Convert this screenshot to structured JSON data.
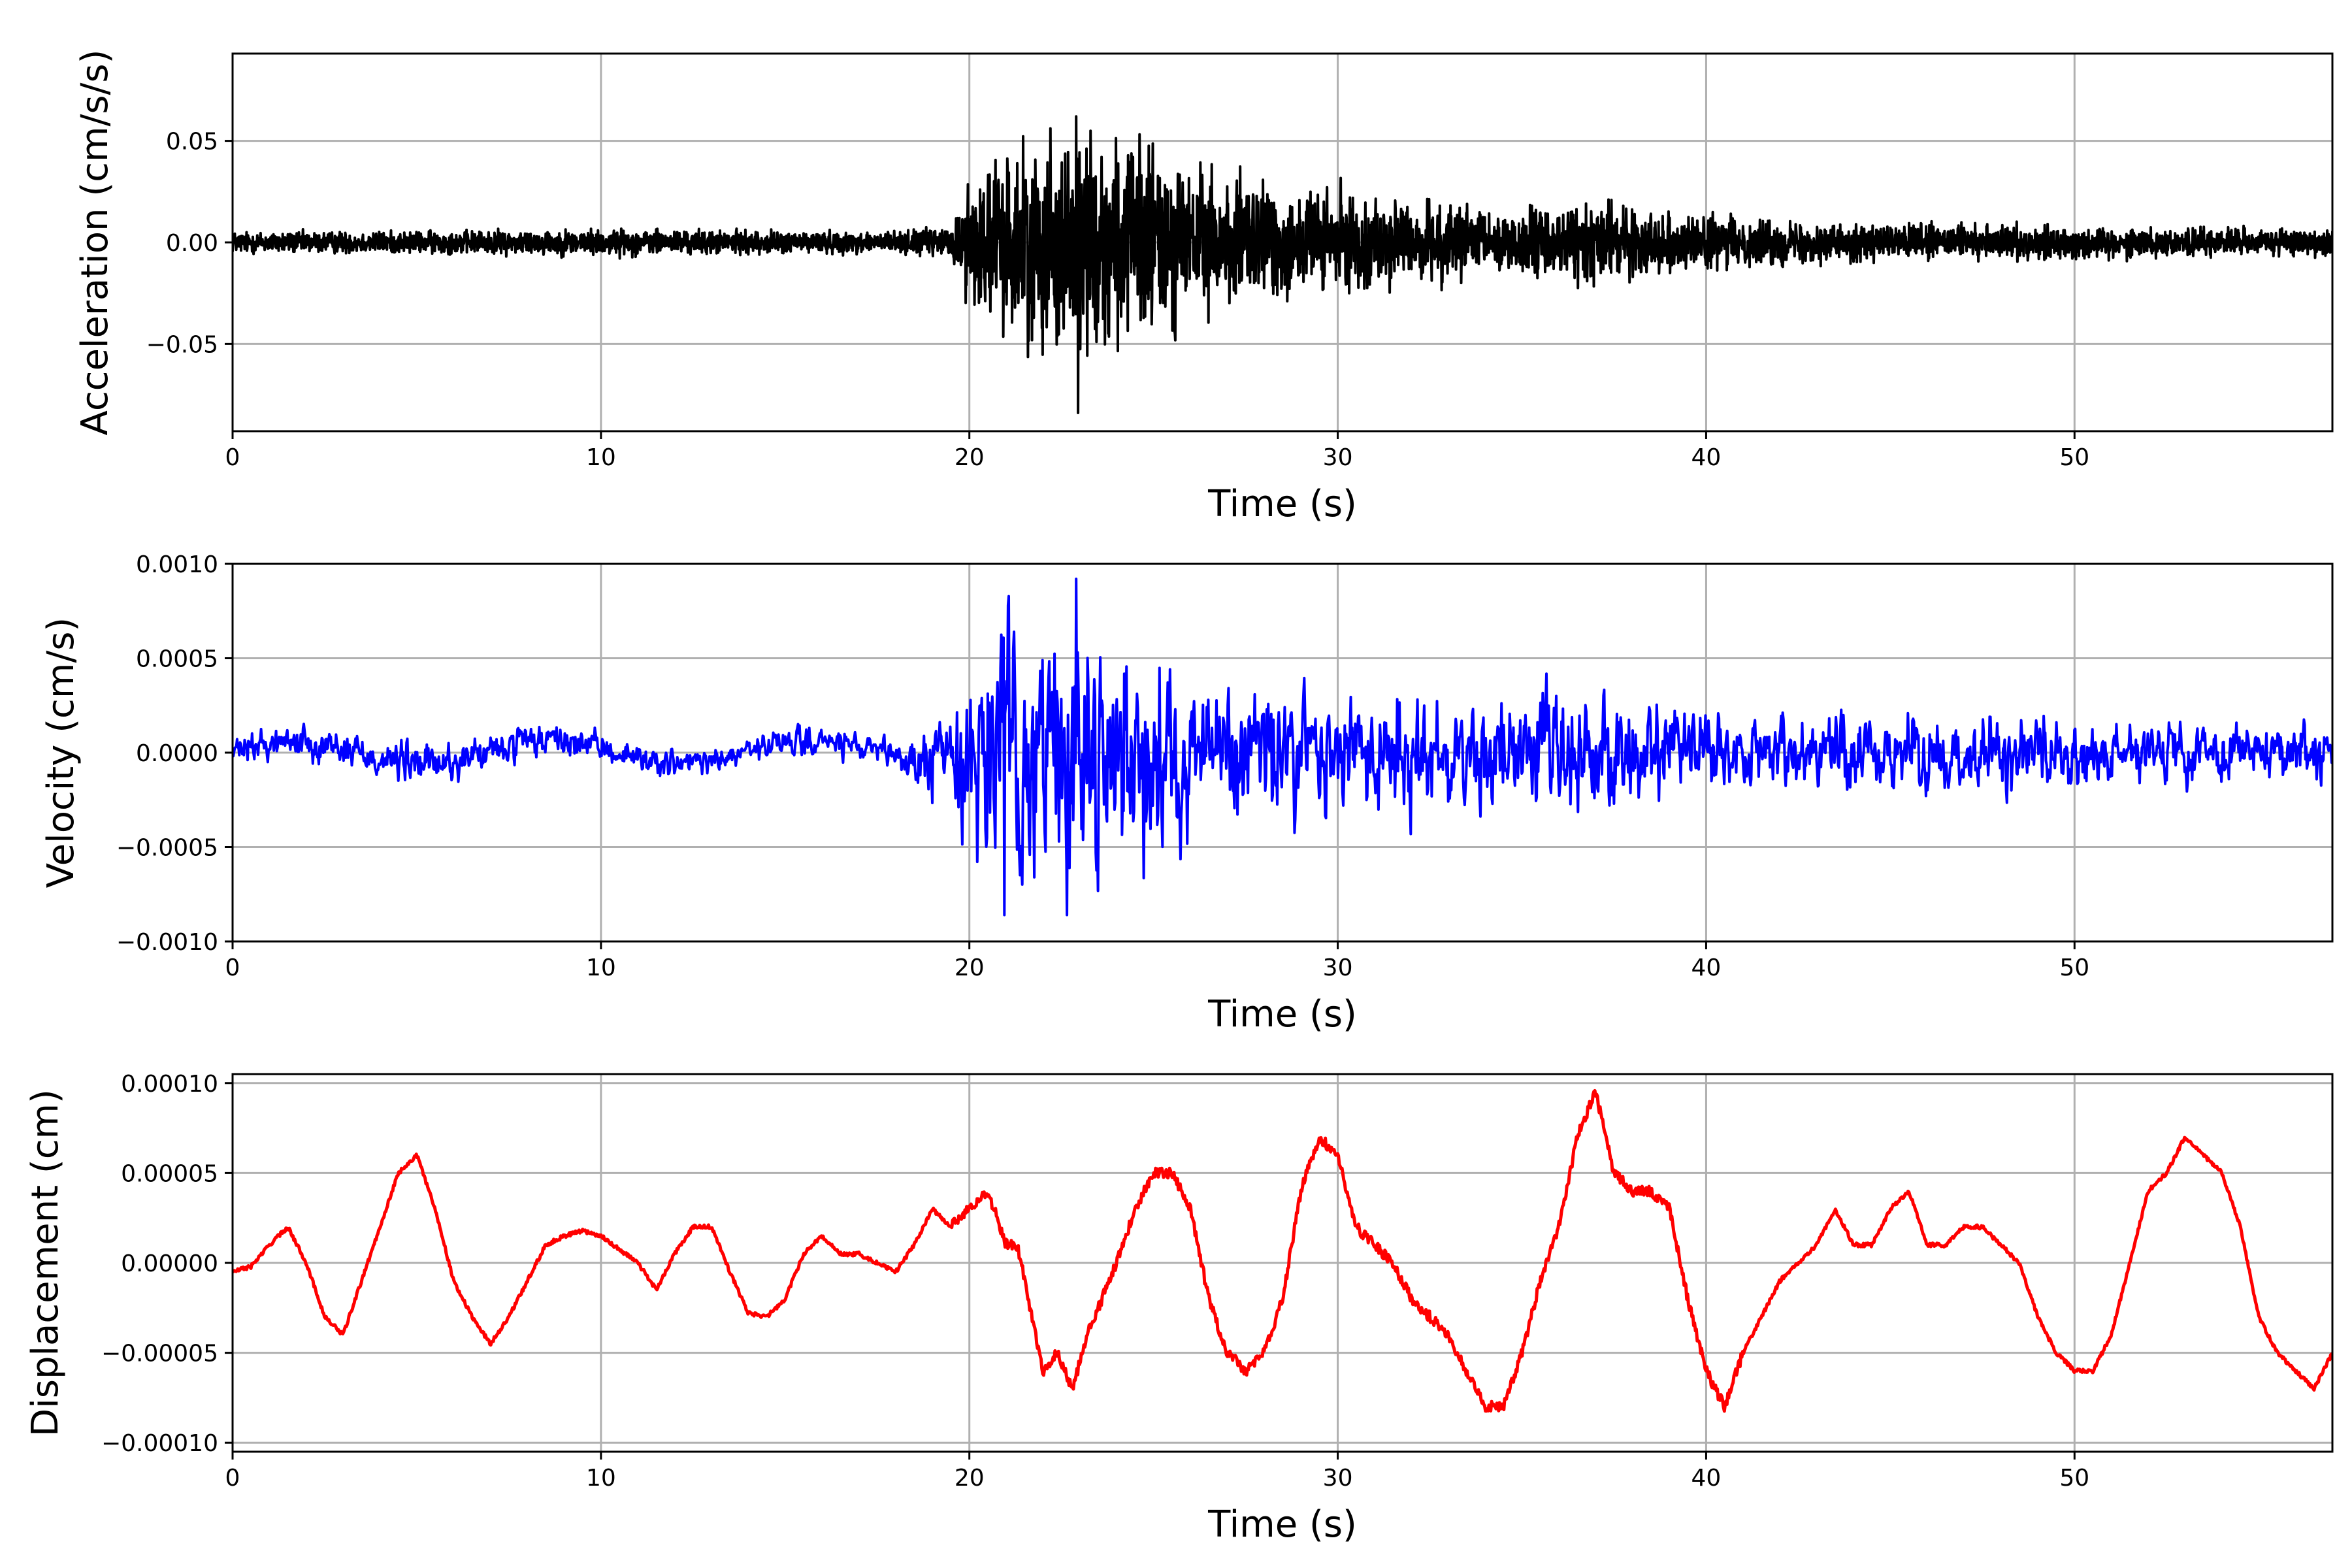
{
  "chart_data": [
    {
      "type": "line",
      "panel": "acceleration",
      "xlabel": "Time (s)",
      "ylabel": "Acceleration (cm/s/s)",
      "xlim": [
        0,
        57
      ],
      "ylim": [
        -0.093,
        0.093
      ],
      "xticks": [
        0,
        10,
        20,
        30,
        40,
        50
      ],
      "xtick_labels": [
        "0",
        "10",
        "20",
        "30",
        "40",
        "50"
      ],
      "yticks": [
        0.05,
        0.0,
        -0.05
      ],
      "ytick_labels": [
        "0.05",
        "0.00",
        "−0.05"
      ],
      "grid": true,
      "color": "#000000",
      "envelope": {
        "x": [
          0,
          5,
          10,
          15,
          18,
          19.5,
          20,
          21,
          22,
          23,
          24,
          25,
          26,
          27,
          28,
          29,
          30,
          32,
          34,
          36,
          37,
          38,
          40,
          42,
          45,
          48,
          50,
          55,
          57
        ],
        "amplitude": [
          0.005,
          0.005,
          0.006,
          0.005,
          0.005,
          0.007,
          0.03,
          0.04,
          0.048,
          0.05,
          0.045,
          0.045,
          0.035,
          0.03,
          0.028,
          0.025,
          0.022,
          0.018,
          0.015,
          0.016,
          0.018,
          0.015,
          0.012,
          0.01,
          0.008,
          0.008,
          0.007,
          0.006,
          0.006
        ]
      },
      "peaks": [
        {
          "x": 22.9,
          "y": 0.062
        },
        {
          "x": 22.95,
          "y": -0.084
        }
      ]
    },
    {
      "type": "line",
      "panel": "velocity",
      "xlabel": "Time (s)",
      "ylabel": "Velocity (cm/s)",
      "xlim": [
        0,
        57
      ],
      "ylim": [
        -0.001,
        0.001
      ],
      "xticks": [
        0,
        10,
        20,
        30,
        40,
        50
      ],
      "xtick_labels": [
        "0",
        "10",
        "20",
        "30",
        "40",
        "50"
      ],
      "yticks": [
        0.001,
        0.0005,
        0.0,
        -0.0005,
        -0.001
      ],
      "ytick_labels": [
        "0.0010",
        "0.0005",
        "0.0000",
        "−0.0005",
        "−0.0010"
      ],
      "grid": true,
      "color": "#0000ff",
      "envelope": {
        "x": [
          0,
          3,
          5,
          10,
          15,
          18,
          19.5,
          20,
          21,
          22,
          23,
          24,
          25,
          27,
          29,
          30,
          32,
          35,
          36,
          38,
          40,
          45,
          48,
          50,
          55,
          57
        ],
        "amplitude": [
          8e-05,
          0.0001,
          0.00012,
          8e-05,
          8e-05,
          8e-05,
          0.00025,
          0.0006,
          0.0007,
          0.0007,
          0.00075,
          0.0006,
          0.00055,
          0.0004,
          0.0004,
          0.00035,
          0.0004,
          0.0003,
          0.0004,
          0.0003,
          0.00022,
          0.0002,
          0.00022,
          0.00018,
          0.00015,
          0.00015
        ]
      },
      "peaks": [
        {
          "x": 22.9,
          "y": 0.00092
        },
        {
          "x": 20.95,
          "y": -0.00086
        },
        {
          "x": 22.65,
          "y": -0.00086
        }
      ]
    },
    {
      "type": "line",
      "panel": "displacement",
      "xlabel": "Time (s)",
      "ylabel": "Displacement (cm)",
      "xlim": [
        0,
        57
      ],
      "ylim": [
        -0.000105,
        0.000105
      ],
      "xticks": [
        0,
        10,
        20,
        30,
        40,
        50
      ],
      "xtick_labels": [
        "0",
        "10",
        "20",
        "30",
        "40",
        "50"
      ],
      "yticks": [
        0.0001,
        5e-05,
        0.0,
        -5e-05,
        -0.0001
      ],
      "ytick_labels": [
        "0.00010",
        "0.00005",
        "0.00000",
        "−0.00005",
        "−0.00010"
      ],
      "grid": true,
      "color": "#ff0000",
      "x": [
        0,
        0.5,
        1.0,
        1.5,
        2.0,
        2.5,
        3.0,
        3.5,
        4.0,
        4.5,
        5.0,
        5.5,
        6.0,
        6.5,
        7.0,
        7.5,
        8.0,
        8.5,
        9.0,
        9.5,
        10.0,
        11.0,
        11.5,
        12.0,
        12.5,
        13.0,
        13.5,
        14.0,
        14.5,
        15.0,
        15.5,
        16.0,
        16.5,
        17.0,
        18.0,
        18.5,
        19.0,
        19.5,
        20.0,
        20.5,
        21.0,
        21.3,
        21.6,
        22.0,
        22.4,
        22.8,
        23.2,
        23.6,
        24.0,
        24.5,
        25.0,
        25.5,
        26.0,
        26.5,
        27.0,
        27.5,
        28.0,
        28.5,
        29.0,
        29.5,
        30.0,
        30.5,
        31.0,
        31.5,
        32.0,
        32.5,
        33.0,
        33.5,
        34.0,
        34.5,
        35.0,
        35.5,
        36.0,
        36.5,
        37.0,
        37.5,
        38.0,
        38.5,
        39.0,
        39.5,
        40.0,
        40.5,
        41.0,
        41.5,
        42.0,
        42.5,
        43.0,
        43.5,
        44.0,
        44.5,
        45.0,
        45.5,
        46.0,
        46.5,
        47.0,
        47.5,
        48.0,
        48.5,
        49.0,
        49.5,
        50.0,
        50.5,
        51.0,
        51.5,
        52.0,
        52.5,
        53.0,
        53.5,
        54.0,
        54.5,
        55.0,
        55.5,
        56.0,
        56.5,
        57.0
      ],
      "y": [
        -5e-06,
        -2e-06,
        1e-05,
        2e-05,
        0.0,
        -3e-05,
        -4e-05,
        -1e-05,
        2e-05,
        5e-05,
        6e-05,
        3e-05,
        -1e-05,
        -3e-05,
        -4.5e-05,
        -3e-05,
        -1e-05,
        1e-05,
        1.5e-05,
        1.8e-05,
        1.5e-05,
        0.0,
        -1.5e-05,
        5e-06,
        2e-05,
        2e-05,
        -5e-06,
        -2.8e-05,
        -3e-05,
        -2e-05,
        5e-06,
        1.5e-05,
        5e-06,
        5e-06,
        -5e-06,
        1e-05,
        3e-05,
        2e-05,
        3e-05,
        4e-05,
        1e-05,
        1e-05,
        -2e-05,
        -6e-05,
        -5e-05,
        -7e-05,
        -4e-05,
        -2e-05,
        0.0,
        3e-05,
        5e-05,
        5e-05,
        3e-05,
        -2e-05,
        -5e-05,
        -6e-05,
        -5e-05,
        -2e-05,
        4e-05,
        7e-05,
        6e-05,
        2e-05,
        1e-05,
        0.0,
        -2e-05,
        -3e-05,
        -4e-05,
        -6e-05,
        -8e-05,
        -8e-05,
        -5e-05,
        -1e-05,
        2e-05,
        7e-05,
        9.5e-05,
        5e-05,
        4e-05,
        4e-05,
        3e-05,
        -2e-05,
        -6e-05,
        -8e-05,
        -5e-05,
        -3e-05,
        -1e-05,
        0.0,
        1e-05,
        3e-05,
        1e-05,
        1e-05,
        3e-05,
        4e-05,
        1e-05,
        1e-05,
        2e-05,
        2e-05,
        1e-05,
        0.0,
        -3e-05,
        -5e-05,
        -6e-05,
        -6e-05,
        -4e-05,
        0.0,
        4e-05,
        5e-05,
        7e-05,
        6e-05,
        5e-05,
        2e-05,
        -3e-05,
        -5e-05,
        -6e-05,
        -7e-05,
        -5e-05
      ]
    }
  ]
}
